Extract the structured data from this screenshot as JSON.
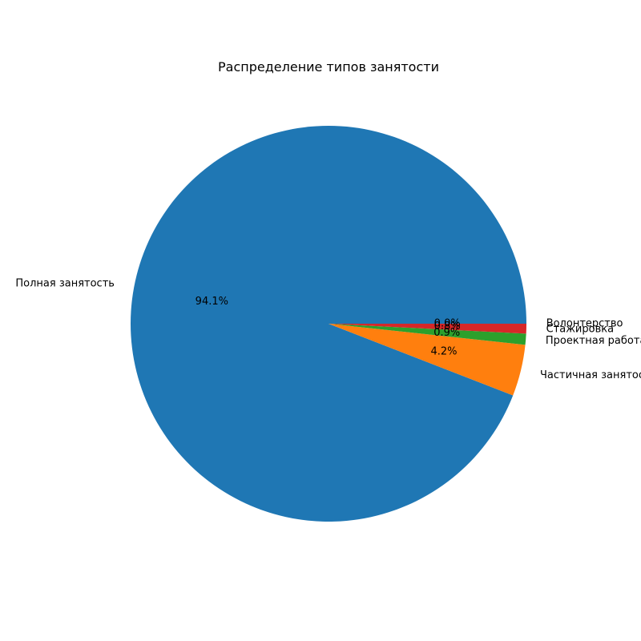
{
  "chart_data": {
    "type": "pie",
    "title": "Распределение типов занятости",
    "slices": [
      {
        "label": "Полная занятость",
        "value": 94.1,
        "pct_label": "94.1%",
        "color": "#1f77b4"
      },
      {
        "label": "Частичная занятость",
        "value": 4.2,
        "pct_label": "4.2%",
        "color": "#ff7f0e"
      },
      {
        "label": "Проектная работа",
        "value": 0.9,
        "pct_label": "0.9%",
        "color": "#2ca02c"
      },
      {
        "label": "Стажировка",
        "value": 0.8,
        "pct_label": "0.8%",
        "color": "#d62728"
      },
      {
        "label": "Волонтерство",
        "value": 0.0,
        "pct_label": "0.0%",
        "color": "#9467bd"
      }
    ],
    "start_angle": "0 degrees (3 o'clock)",
    "direction": "counterclockwise",
    "legend": "none"
  }
}
